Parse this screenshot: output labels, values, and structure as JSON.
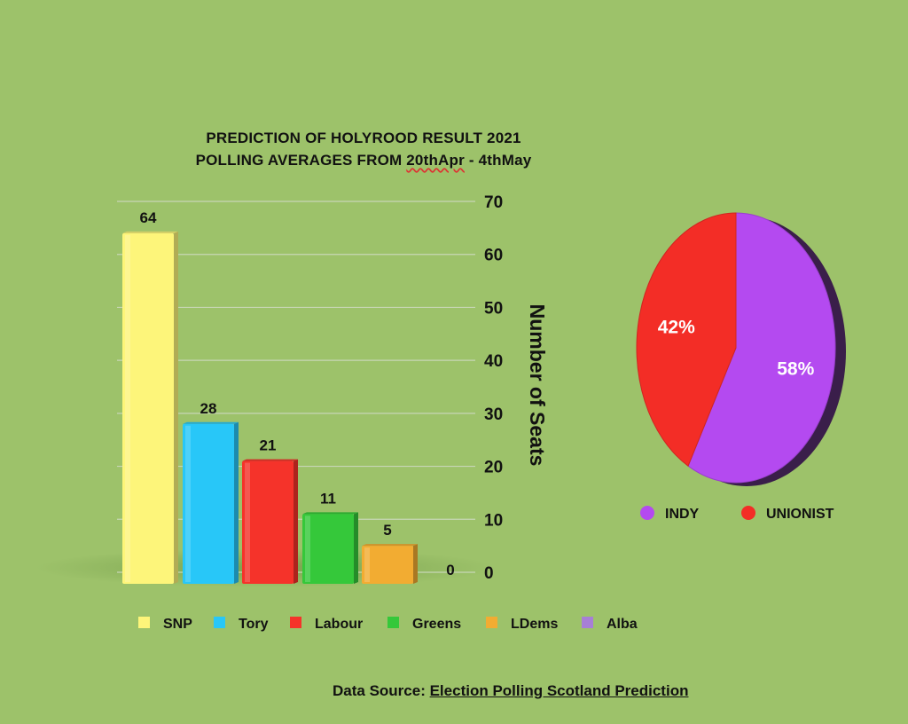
{
  "colors": {
    "background": "#9dc26a",
    "SNP": "#fdf57a",
    "Tory": "#28c7f8",
    "Labour": "#f5332a",
    "Greens": "#35c83a",
    "LDems": "#f2ac32",
    "Alba": "#a77fd6",
    "INDY": "#b44af0",
    "UNIONIST": "#f32d26"
  },
  "chart_data": [
    {
      "type": "bar",
      "title_line1": "PREDICTION OF  HOLYROOD RESULT  2021",
      "title_line2_prefix": "POLLING AVERAGES FROM ",
      "title_line2_underlined": "20thApr",
      "title_line2_suffix": " - 4thMay",
      "xlabel": "",
      "ylabel": "Number of Seats",
      "categories": [
        "SNP",
        "Tory",
        "Labour",
        "Greens",
        "LDems",
        "Alba"
      ],
      "values": [
        64,
        28,
        21,
        11,
        5,
        0
      ],
      "value_labels": [
        "64",
        "28",
        "21",
        "11",
        "5",
        "0"
      ],
      "ylim": [
        0,
        70
      ],
      "yticks": [
        "0",
        "10",
        "20",
        "30",
        "40",
        "50",
        "60",
        "70"
      ],
      "grid": true,
      "legend_position": "bottom"
    },
    {
      "type": "pie",
      "categories": [
        "INDY",
        "UNIONIST"
      ],
      "values": [
        58,
        42
      ],
      "labels": [
        "58%",
        "42%"
      ],
      "legend_position": "bottom"
    }
  ],
  "footer": {
    "source_prefix": "Data Source: ",
    "source_link": "Election Polling Scotland Prediction"
  }
}
